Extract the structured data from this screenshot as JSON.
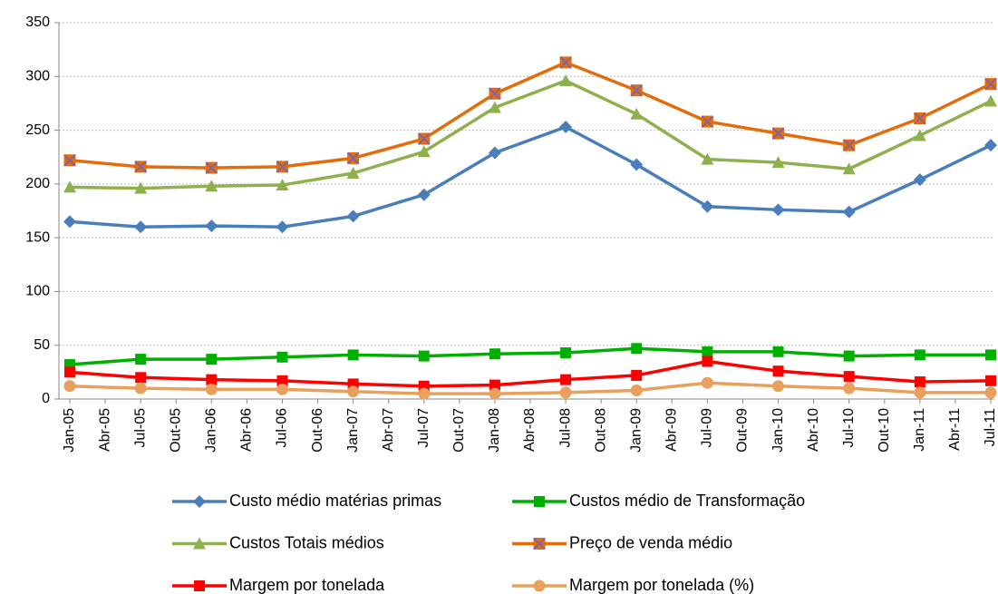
{
  "chart_data": {
    "type": "line",
    "categories": [
      "Jan-05",
      "Abr-05",
      "Jul-05",
      "Out-05",
      "Jan-06",
      "Abr-06",
      "Jul-06",
      "Out-06",
      "Jan-07",
      "Abr-07",
      "Jul-07",
      "Out-07",
      "Jan-08",
      "Abr-08",
      "Jul-08",
      "Out-08",
      "Jan-09",
      "Abr-09",
      "Jul-09",
      "Out-09",
      "Jan-10",
      "Abr-10",
      "Jul-10",
      "Out-10",
      "Jan-11",
      "Abr-11",
      "Jul-11"
    ],
    "span_gaps": true,
    "grid": true,
    "legend": "bottom",
    "ylim": [
      0,
      350
    ],
    "yticks": [
      0,
      50,
      100,
      150,
      200,
      250,
      300,
      350
    ],
    "series": [
      {
        "name": "Custo médio matérias primas",
        "color": "#4a7ebb",
        "marker": "diamond",
        "values": [
          165,
          null,
          160,
          null,
          161,
          null,
          160,
          null,
          170,
          null,
          190,
          null,
          229,
          null,
          253,
          null,
          218,
          null,
          179,
          null,
          176,
          null,
          174,
          null,
          204,
          null,
          236
        ]
      },
      {
        "name": "Custos médio de Transformação",
        "color": "#00b000",
        "marker": "square",
        "values": [
          32,
          null,
          37,
          null,
          37,
          null,
          39,
          null,
          41,
          null,
          40,
          null,
          42,
          null,
          43,
          null,
          47,
          null,
          44,
          null,
          44,
          null,
          40,
          null,
          41,
          null,
          41
        ]
      },
      {
        "name": "Custos Totais médios",
        "color": "#8fb04e",
        "marker": "triangle",
        "values": [
          197,
          null,
          196,
          null,
          198,
          null,
          199,
          null,
          210,
          null,
          230,
          null,
          271,
          null,
          296,
          null,
          265,
          null,
          223,
          null,
          220,
          null,
          214,
          null,
          245,
          null,
          277
        ]
      },
      {
        "name": "Preço de venda médio",
        "color": "#e46c0a",
        "marker": "xsquare",
        "values": [
          222,
          null,
          216,
          null,
          215,
          null,
          216,
          null,
          224,
          null,
          242,
          null,
          284,
          null,
          313,
          null,
          287,
          null,
          258,
          null,
          247,
          null,
          236,
          null,
          261,
          null,
          293
        ]
      },
      {
        "name": "Margem por tonelada",
        "color": "#ff0000",
        "marker": "square",
        "values": [
          25,
          null,
          20,
          null,
          18,
          null,
          17,
          null,
          14,
          null,
          12,
          null,
          13,
          null,
          18,
          null,
          22,
          null,
          35,
          null,
          26,
          null,
          21,
          null,
          16,
          null,
          17
        ]
      },
      {
        "name": "Margem por tonelada (%)",
        "color": "#e8a05c",
        "marker": "circle",
        "values": [
          12,
          null,
          10,
          null,
          9,
          null,
          9,
          null,
          7,
          null,
          5,
          null,
          5,
          null,
          6,
          null,
          8,
          null,
          15,
          null,
          12,
          null,
          10,
          null,
          6,
          null,
          6
        ]
      }
    ]
  }
}
